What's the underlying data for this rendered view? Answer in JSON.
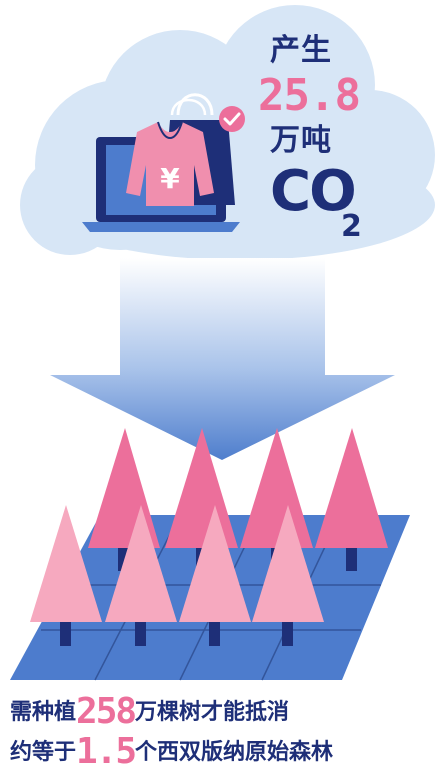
{
  "cloud": {
    "produce": "产生",
    "amount": "25.8",
    "unit": "万吨",
    "co": "CO",
    "subscript": "2"
  },
  "footer": {
    "line1_prefix": "需种植",
    "line1_number": "258",
    "line1_suffix": "万棵树才能抵消",
    "line2_prefix": "约等于",
    "line2_number": "1.5",
    "line2_suffix": "个西双版纳原始森林"
  },
  "colors": {
    "navy": "#1e2f78",
    "pink": "#ec6f9b",
    "light_pink": "#f6a9bf",
    "cloud": "#d7e6f6",
    "blue": "#4d7ccd"
  },
  "icons": {
    "shirt": "sweater-yen-icon",
    "bag": "shopping-bag-icon",
    "check": "check-badge-icon",
    "laptop": "laptop-icon"
  }
}
